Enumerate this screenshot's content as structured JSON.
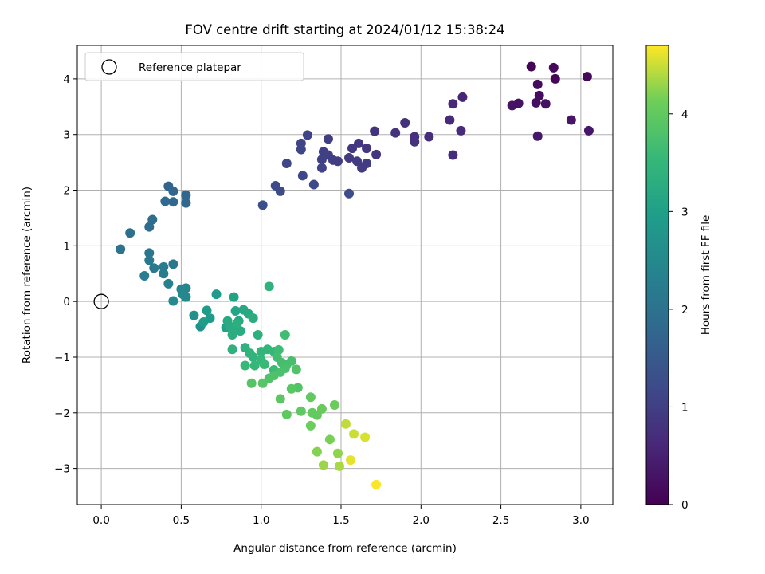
{
  "chart_data": {
    "type": "scatter",
    "title": "FOV centre drift starting at 2024/01/12 15:38:24",
    "xlabel": "Angular distance from reference (arcmin)",
    "ylabel": "Rotation from reference (arcmin)",
    "xlim": [
      -0.15,
      3.2
    ],
    "ylim": [
      -3.65,
      4.6
    ],
    "xticks": [
      "0.0",
      "0.5",
      "1.0",
      "1.5",
      "2.0",
      "2.5",
      "3.0"
    ],
    "yticks": [
      "−3",
      "−2",
      "−1",
      "0",
      "1",
      "2",
      "3",
      "4"
    ],
    "grid": true,
    "legend": {
      "position": "top-left",
      "entries": [
        "Reference platepar"
      ]
    },
    "reference_point": {
      "x": 0,
      "y": 0
    },
    "colorbar": {
      "label": "Hours from first FF file",
      "range": [
        0,
        4.7
      ],
      "ticks": [
        "0",
        "1",
        "2",
        "3",
        "4"
      ],
      "colormap": "viridis"
    },
    "points": [
      {
        "x": 2.69,
        "y": 4.22,
        "c": 0.05
      },
      {
        "x": 2.83,
        "y": 4.2,
        "c": 0.1
      },
      {
        "x": 3.04,
        "y": 4.04,
        "c": 0.12
      },
      {
        "x": 2.84,
        "y": 4.0,
        "c": 0.08
      },
      {
        "x": 2.73,
        "y": 3.9,
        "c": 0.15
      },
      {
        "x": 2.74,
        "y": 3.7,
        "c": 0.18
      },
      {
        "x": 2.72,
        "y": 3.57,
        "c": 0.2
      },
      {
        "x": 2.78,
        "y": 3.55,
        "c": 0.22
      },
      {
        "x": 2.61,
        "y": 3.56,
        "c": 0.25
      },
      {
        "x": 2.57,
        "y": 3.52,
        "c": 0.28
      },
      {
        "x": 2.94,
        "y": 3.26,
        "c": 0.3
      },
      {
        "x": 3.05,
        "y": 3.07,
        "c": 0.32
      },
      {
        "x": 2.73,
        "y": 2.97,
        "c": 0.35
      },
      {
        "x": 2.26,
        "y": 3.67,
        "c": 0.55
      },
      {
        "x": 2.2,
        "y": 3.55,
        "c": 0.6
      },
      {
        "x": 2.18,
        "y": 3.26,
        "c": 0.62
      },
      {
        "x": 2.25,
        "y": 3.07,
        "c": 0.65
      },
      {
        "x": 2.2,
        "y": 2.63,
        "c": 0.68
      },
      {
        "x": 2.05,
        "y": 2.96,
        "c": 0.7
      },
      {
        "x": 1.96,
        "y": 2.96,
        "c": 0.72
      },
      {
        "x": 1.96,
        "y": 2.87,
        "c": 0.74
      },
      {
        "x": 1.9,
        "y": 3.21,
        "c": 0.76
      },
      {
        "x": 1.84,
        "y": 3.03,
        "c": 0.78
      },
      {
        "x": 1.71,
        "y": 3.06,
        "c": 0.8
      },
      {
        "x": 1.72,
        "y": 2.64,
        "c": 0.82
      },
      {
        "x": 1.66,
        "y": 2.75,
        "c": 0.84
      },
      {
        "x": 1.61,
        "y": 2.84,
        "c": 0.86
      },
      {
        "x": 1.57,
        "y": 2.75,
        "c": 0.88
      },
      {
        "x": 1.55,
        "y": 2.58,
        "c": 0.9
      },
      {
        "x": 1.6,
        "y": 2.52,
        "c": 0.92
      },
      {
        "x": 1.66,
        "y": 2.48,
        "c": 0.94
      },
      {
        "x": 1.63,
        "y": 2.4,
        "c": 0.95
      },
      {
        "x": 1.48,
        "y": 2.52,
        "c": 0.96
      },
      {
        "x": 1.45,
        "y": 2.54,
        "c": 0.98
      },
      {
        "x": 1.42,
        "y": 2.92,
        "c": 1.0
      },
      {
        "x": 1.42,
        "y": 2.63,
        "c": 1.0
      },
      {
        "x": 1.39,
        "y": 2.69,
        "c": 1.02
      },
      {
        "x": 1.38,
        "y": 2.55,
        "c": 1.04
      },
      {
        "x": 1.38,
        "y": 2.4,
        "c": 1.06
      },
      {
        "x": 1.29,
        "y": 2.99,
        "c": 1.08
      },
      {
        "x": 1.25,
        "y": 2.84,
        "c": 1.1
      },
      {
        "x": 1.25,
        "y": 2.73,
        "c": 1.12
      },
      {
        "x": 1.16,
        "y": 2.48,
        "c": 1.14
      },
      {
        "x": 1.26,
        "y": 2.26,
        "c": 1.16
      },
      {
        "x": 1.33,
        "y": 2.1,
        "c": 1.18
      },
      {
        "x": 1.09,
        "y": 2.08,
        "c": 1.2
      },
      {
        "x": 1.12,
        "y": 1.98,
        "c": 1.22
      },
      {
        "x": 1.55,
        "y": 1.94,
        "c": 1.24
      },
      {
        "x": 1.01,
        "y": 1.73,
        "c": 1.3
      },
      {
        "x": 0.42,
        "y": 2.07,
        "c": 1.7
      },
      {
        "x": 0.45,
        "y": 1.98,
        "c": 1.72
      },
      {
        "x": 0.53,
        "y": 1.91,
        "c": 1.74
      },
      {
        "x": 0.53,
        "y": 1.77,
        "c": 1.76
      },
      {
        "x": 0.45,
        "y": 1.79,
        "c": 1.78
      },
      {
        "x": 0.4,
        "y": 1.8,
        "c": 1.8
      },
      {
        "x": 0.32,
        "y": 1.47,
        "c": 1.85
      },
      {
        "x": 0.3,
        "y": 1.34,
        "c": 1.88
      },
      {
        "x": 0.18,
        "y": 1.23,
        "c": 1.95
      },
      {
        "x": 0.12,
        "y": 0.94,
        "c": 2.0
      },
      {
        "x": 0.3,
        "y": 0.87,
        "c": 2.05
      },
      {
        "x": 0.3,
        "y": 0.74,
        "c": 2.1
      },
      {
        "x": 0.45,
        "y": 0.67,
        "c": 2.15
      },
      {
        "x": 0.33,
        "y": 0.6,
        "c": 2.18
      },
      {
        "x": 0.39,
        "y": 0.62,
        "c": 2.2
      },
      {
        "x": 0.39,
        "y": 0.5,
        "c": 2.22
      },
      {
        "x": 0.27,
        "y": 0.46,
        "c": 2.25
      },
      {
        "x": 0.42,
        "y": 0.32,
        "c": 2.3
      },
      {
        "x": 0.53,
        "y": 0.24,
        "c": 2.4
      },
      {
        "x": 0.5,
        "y": 0.22,
        "c": 2.45
      },
      {
        "x": 0.51,
        "y": 0.13,
        "c": 2.48
      },
      {
        "x": 0.53,
        "y": 0.08,
        "c": 2.5
      },
      {
        "x": 0.45,
        "y": 0.01,
        "c": 2.52
      },
      {
        "x": 0.58,
        "y": -0.25,
        "c": 2.6
      },
      {
        "x": 0.62,
        "y": -0.45,
        "c": 2.65
      },
      {
        "x": 0.72,
        "y": 0.13,
        "c": 2.85
      },
      {
        "x": 0.66,
        "y": -0.16,
        "c": 2.88
      },
      {
        "x": 0.68,
        "y": -0.3,
        "c": 2.9
      },
      {
        "x": 0.64,
        "y": -0.37,
        "c": 2.92
      },
      {
        "x": 0.78,
        "y": -0.47,
        "c": 3.0
      },
      {
        "x": 0.83,
        "y": 0.08,
        "c": 3.05
      },
      {
        "x": 0.84,
        "y": -0.17,
        "c": 3.1
      },
      {
        "x": 0.86,
        "y": -0.35,
        "c": 3.12
      },
      {
        "x": 0.89,
        "y": -0.15,
        "c": 3.15
      },
      {
        "x": 0.92,
        "y": -0.22,
        "c": 3.18
      },
      {
        "x": 0.79,
        "y": -0.35,
        "c": 3.2
      },
      {
        "x": 0.8,
        "y": -0.44,
        "c": 3.22
      },
      {
        "x": 0.82,
        "y": -0.5,
        "c": 3.24
      },
      {
        "x": 0.87,
        "y": -0.53,
        "c": 3.26
      },
      {
        "x": 0.82,
        "y": -0.6,
        "c": 3.28
      },
      {
        "x": 0.95,
        "y": -0.3,
        "c": 3.3
      },
      {
        "x": 0.85,
        "y": -0.4,
        "c": 3.32
      },
      {
        "x": 0.98,
        "y": -0.6,
        "c": 3.34
      },
      {
        "x": 0.82,
        "y": -0.86,
        "c": 3.36
      },
      {
        "x": 0.9,
        "y": -0.83,
        "c": 3.38
      },
      {
        "x": 1.05,
        "y": 0.27,
        "c": 3.4
      },
      {
        "x": 0.93,
        "y": -0.93,
        "c": 3.42
      },
      {
        "x": 0.95,
        "y": -1.0,
        "c": 3.44
      },
      {
        "x": 1.0,
        "y": -0.9,
        "c": 3.46
      },
      {
        "x": 1.04,
        "y": -0.86,
        "c": 3.48
      },
      {
        "x": 1.08,
        "y": -0.9,
        "c": 3.5
      },
      {
        "x": 0.96,
        "y": -1.15,
        "c": 3.52
      },
      {
        "x": 1.0,
        "y": -1.05,
        "c": 3.54
      },
      {
        "x": 0.9,
        "y": -1.15,
        "c": 3.56
      },
      {
        "x": 1.02,
        "y": -1.13,
        "c": 3.58
      },
      {
        "x": 1.08,
        "y": -1.23,
        "c": 3.6
      },
      {
        "x": 1.11,
        "y": -0.87,
        "c": 3.62
      },
      {
        "x": 1.15,
        "y": -0.6,
        "c": 3.64
      },
      {
        "x": 1.1,
        "y": -1.0,
        "c": 3.66
      },
      {
        "x": 1.13,
        "y": -1.1,
        "c": 3.68
      },
      {
        "x": 1.16,
        "y": -1.13,
        "c": 3.7
      },
      {
        "x": 1.19,
        "y": -1.07,
        "c": 3.72
      },
      {
        "x": 1.15,
        "y": -1.2,
        "c": 3.74
      },
      {
        "x": 1.12,
        "y": -1.27,
        "c": 3.76
      },
      {
        "x": 1.08,
        "y": -1.33,
        "c": 3.78
      },
      {
        "x": 1.05,
        "y": -1.38,
        "c": 3.8
      },
      {
        "x": 1.22,
        "y": -1.22,
        "c": 3.82
      },
      {
        "x": 1.23,
        "y": -1.55,
        "c": 3.84
      },
      {
        "x": 0.94,
        "y": -1.47,
        "c": 3.86
      },
      {
        "x": 1.01,
        "y": -1.47,
        "c": 3.88
      },
      {
        "x": 1.19,
        "y": -1.57,
        "c": 3.9
      },
      {
        "x": 1.12,
        "y": -1.75,
        "c": 3.92
      },
      {
        "x": 1.16,
        "y": -2.03,
        "c": 3.94
      },
      {
        "x": 1.25,
        "y": -1.97,
        "c": 3.96
      },
      {
        "x": 1.31,
        "y": -1.72,
        "c": 3.98
      },
      {
        "x": 1.32,
        "y": -2.0,
        "c": 4.0
      },
      {
        "x": 1.35,
        "y": -2.04,
        "c": 4.02
      },
      {
        "x": 1.38,
        "y": -1.93,
        "c": 4.04
      },
      {
        "x": 1.46,
        "y": -1.86,
        "c": 4.06
      },
      {
        "x": 1.31,
        "y": -2.23,
        "c": 4.08
      },
      {
        "x": 1.43,
        "y": -2.48,
        "c": 4.15
      },
      {
        "x": 1.35,
        "y": -2.7,
        "c": 4.2
      },
      {
        "x": 1.48,
        "y": -2.73,
        "c": 4.25
      },
      {
        "x": 1.39,
        "y": -2.94,
        "c": 4.3
      },
      {
        "x": 1.49,
        "y": -2.96,
        "c": 4.35
      },
      {
        "x": 1.53,
        "y": -2.2,
        "c": 4.45
      },
      {
        "x": 1.58,
        "y": -2.38,
        "c": 4.5
      },
      {
        "x": 1.65,
        "y": -2.44,
        "c": 4.55
      },
      {
        "x": 1.56,
        "y": -2.85,
        "c": 4.6
      },
      {
        "x": 1.72,
        "y": -3.29,
        "c": 4.68
      }
    ]
  }
}
